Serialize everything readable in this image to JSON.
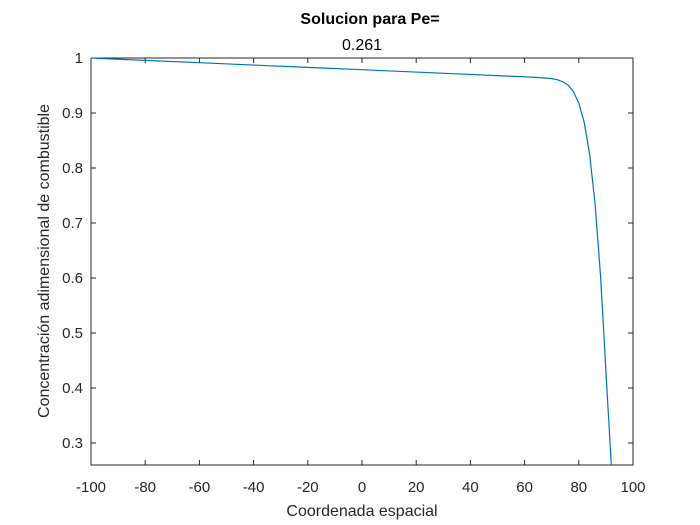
{
  "chart_data": {
    "type": "line",
    "title": "Solucion para Pe=",
    "subtitle": "0.261",
    "xlabel": "Coordenada espacial",
    "ylabel": "Concentración adimensional de combustible",
    "xlim": [
      -100,
      100
    ],
    "ylim": [
      0.26,
      1.0
    ],
    "xticks": [
      -100,
      -80,
      -60,
      -40,
      -20,
      0,
      20,
      40,
      60,
      80,
      100
    ],
    "yticks": [
      0.3,
      0.4,
      0.5,
      0.6,
      0.7,
      0.8,
      0.9,
      1
    ],
    "xtick_labels": [
      "-100",
      "-80",
      "-60",
      "-40",
      "-20",
      "0",
      "20",
      "40",
      "60",
      "80",
      "100"
    ],
    "ytick_labels": [
      "0.3",
      "0.4",
      "0.5",
      "0.6",
      "0.7",
      "0.8",
      "0.9",
      "1"
    ],
    "grid": false,
    "box": true,
    "series": [
      {
        "color": "#0072BD",
        "x": [
          -100,
          -80,
          -60,
          -40,
          -20,
          0,
          20,
          40,
          60,
          65,
          70,
          72,
          74,
          76,
          78,
          80,
          82,
          84,
          86,
          88,
          89,
          90,
          91,
          92
        ],
        "y": [
          1.0,
          0.9957,
          0.9915,
          0.9872,
          0.9829,
          0.9787,
          0.9744,
          0.9701,
          0.9658,
          0.9645,
          0.9625,
          0.9605,
          0.957,
          0.951,
          0.939,
          0.918,
          0.883,
          0.825,
          0.735,
          0.605,
          0.52,
          0.43,
          0.345,
          0.26
        ]
      }
    ]
  }
}
